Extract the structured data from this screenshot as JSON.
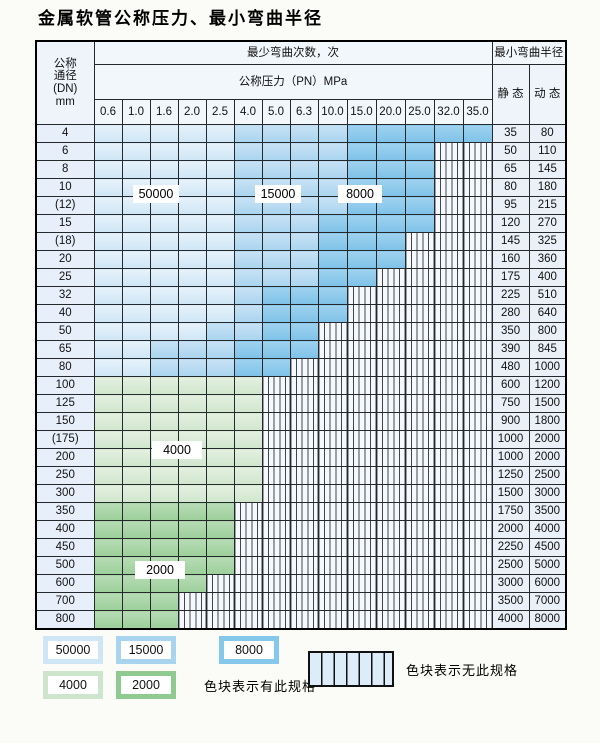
{
  "title": "金属软管公称压力、最小弯曲半径",
  "table": {
    "header": {
      "dn_lines": [
        "公称",
        "通径",
        "(DN)",
        "mm"
      ],
      "bend_cycles": "最少弯曲次数，次",
      "pressure": "公称压力（PN）MPa",
      "pressures": [
        "0.6",
        "1.0",
        "1.6",
        "2.0",
        "2.5",
        "4.0",
        "5.0",
        "6.3",
        "10.0",
        "15.0",
        "20.0",
        "25.0",
        "32.0",
        "35.0"
      ],
      "radius": "最小弯曲半径",
      "static": "静 态",
      "dynamic": "动 态"
    },
    "cell_legend": {
      "A": "50000次",
      "B": "15000次",
      "C": "8000次",
      "G": "4000次",
      "H": "2000次",
      "N": "无此规格"
    },
    "rows": [
      {
        "dn": "4",
        "cells": "AAAAABBBBCCCCC",
        "static": "35",
        "dynamic": "80"
      },
      {
        "dn": "6",
        "cells": "AAAAABBBBCCCNN",
        "static": "50",
        "dynamic": "110"
      },
      {
        "dn": "8",
        "cells": "AAAAABBBBCCCNN",
        "static": "65",
        "dynamic": "145"
      },
      {
        "dn": "10",
        "cells": "AAAAABBBBCCCNN",
        "static": "80",
        "dynamic": "180"
      },
      {
        "dn": "(12)",
        "cells": "AAAAABBBBCCCNN",
        "static": "95",
        "dynamic": "215"
      },
      {
        "dn": "15",
        "cells": "AAAAABBBCCCCNN",
        "static": "120",
        "dynamic": "270"
      },
      {
        "dn": "(18)",
        "cells": "AAAAABBBCCCNNN",
        "static": "145",
        "dynamic": "325"
      },
      {
        "dn": "20",
        "cells": "AAAAABBBCCCNNN",
        "static": "160",
        "dynamic": "360"
      },
      {
        "dn": "25",
        "cells": "AAAAABBBCCNNNN",
        "static": "175",
        "dynamic": "400"
      },
      {
        "dn": "32",
        "cells": "AAAAABCCCNNNNN",
        "static": "225",
        "dynamic": "510"
      },
      {
        "dn": "40",
        "cells": "AAAAABCCCNNNNN",
        "static": "280",
        "dynamic": "640"
      },
      {
        "dn": "50",
        "cells": "AAAABBCCNNNNNN",
        "static": "350",
        "dynamic": "800"
      },
      {
        "dn": "65",
        "cells": "AABBBCCCNNNNNN",
        "static": "390",
        "dynamic": "845"
      },
      {
        "dn": "80",
        "cells": "AABBBCCNNNNNNN",
        "static": "480",
        "dynamic": "1000"
      },
      {
        "dn": "100",
        "cells": "GGGGGGNNNNNNNN",
        "static": "600",
        "dynamic": "1200"
      },
      {
        "dn": "125",
        "cells": "GGGGGGNNNNNNNN",
        "static": "750",
        "dynamic": "1500"
      },
      {
        "dn": "150",
        "cells": "GGGGGGNNNNNNNN",
        "static": "900",
        "dynamic": "1800"
      },
      {
        "dn": "(175)",
        "cells": "GGGGGGNNNNNNNN",
        "static": "1000",
        "dynamic": "2000"
      },
      {
        "dn": "200",
        "cells": "GGGGGGNNNNNNNN",
        "static": "1000",
        "dynamic": "2000"
      },
      {
        "dn": "250",
        "cells": "GGGGGGNNNNNNNN",
        "static": "1250",
        "dynamic": "2500"
      },
      {
        "dn": "300",
        "cells": "GGGGGGNNNNNNNN",
        "static": "1500",
        "dynamic": "3000"
      },
      {
        "dn": "350",
        "cells": "HHHHHNNNNNNNNN",
        "static": "1750",
        "dynamic": "3500"
      },
      {
        "dn": "400",
        "cells": "HHHHHNNNNNNNNN",
        "static": "2000",
        "dynamic": "4000"
      },
      {
        "dn": "450",
        "cells": "HHHHHNNNNNNNNN",
        "static": "2250",
        "dynamic": "4500"
      },
      {
        "dn": "500",
        "cells": "HHHHHNNNNNNNNN",
        "static": "2500",
        "dynamic": "5000"
      },
      {
        "dn": "600",
        "cells": "HHHHNNNNNNNNNN",
        "static": "3000",
        "dynamic": "6000"
      },
      {
        "dn": "700",
        "cells": "HHHNNNNNNNNNNN",
        "static": "3500",
        "dynamic": "7000"
      },
      {
        "dn": "800",
        "cells": "HHHNNNNNNNNNNN",
        "static": "4000",
        "dynamic": "8000"
      }
    ]
  },
  "inline_labels": {
    "l50000": "50000",
    "l15000": "15000",
    "l8000": "8000",
    "l4000": "4000",
    "l2000": "2000"
  },
  "legend": {
    "swatches": [
      {
        "label": "50000",
        "color": "#cfe6f7"
      },
      {
        "label": "15000",
        "color": "#a8d4f0"
      },
      {
        "label": "8000",
        "color": "#85c8ec"
      },
      {
        "label": "4000",
        "color": "#cde5cc"
      },
      {
        "label": "2000",
        "color": "#8fcb91"
      }
    ],
    "available_note": "色块表示有此规格",
    "unavailable_note": "色块表示无此规格"
  },
  "colors": {
    "cell_50000": "#cfe6f7",
    "cell_15000": "#a9d4ef",
    "cell_8000": "#7ec2e8",
    "cell_4000": "#d0e6cd",
    "cell_2000": "#9ccf9a",
    "grid_line": "#26292c",
    "unavailable_bg": "#f5f9fd"
  }
}
